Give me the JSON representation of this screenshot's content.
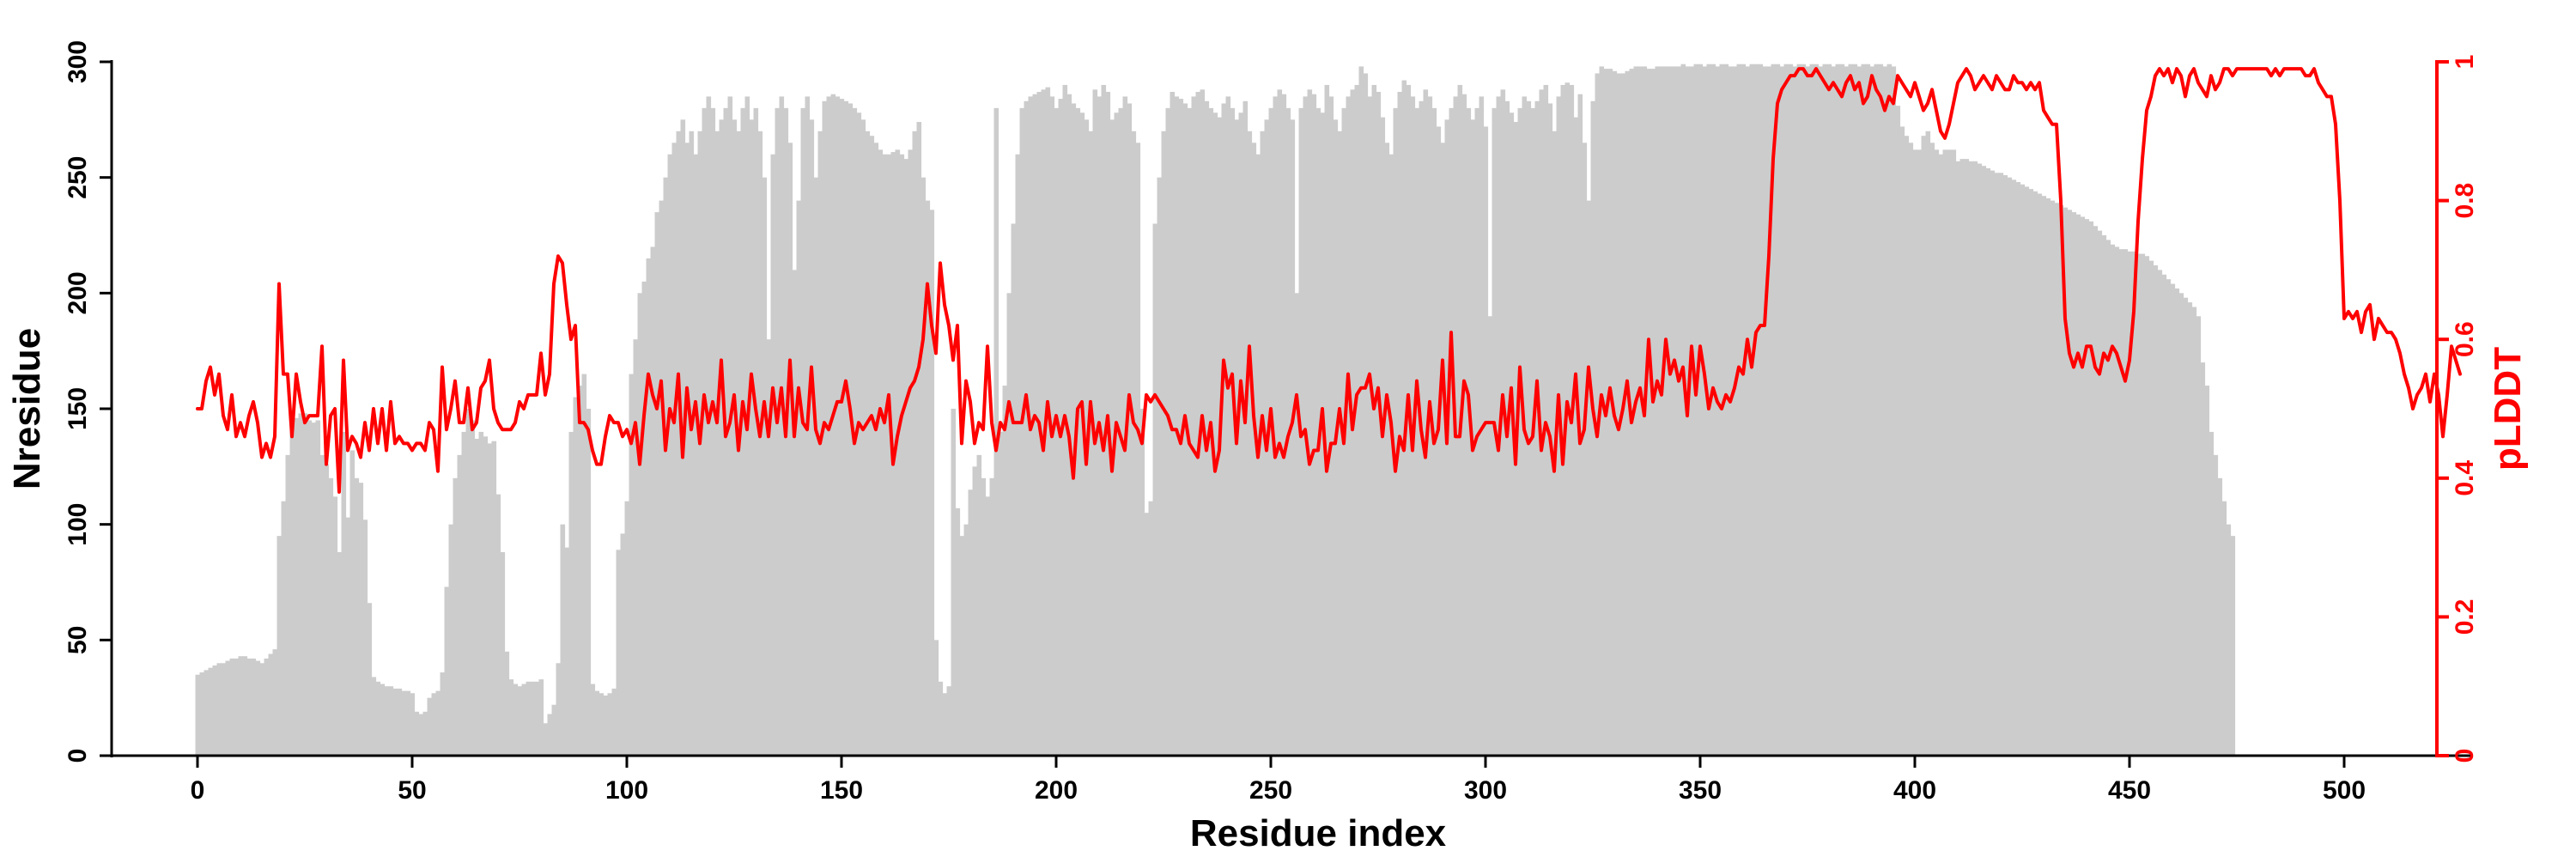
{
  "colors": {
    "bars": "#cccccc",
    "line": "#ff0000",
    "axis_left": "#000000",
    "axis_right": "#ff0000",
    "background": "#ffffff"
  },
  "chart_data": {
    "type": "bar+line",
    "title": "",
    "xlabel": "Residue index",
    "ylabel_left": "Nresidue",
    "ylabel_right": "pLDDT",
    "xlim": [
      -20,
      522
    ],
    "ylim_left": [
      0,
      300
    ],
    "ylim_right": [
      0,
      1
    ],
    "x_ticks": [
      0,
      50,
      100,
      150,
      200,
      250,
      300,
      350,
      400,
      450,
      500
    ],
    "y_left_ticks": [
      0,
      50,
      100,
      150,
      200,
      250,
      300
    ],
    "y_right_ticks": [
      0,
      0.2,
      0.4,
      0.6,
      0.8,
      1
    ],
    "y_right_tick_labels": [
      "0",
      "0.2",
      "0.4",
      "0.6",
      "0.8",
      "1"
    ],
    "grid": false,
    "bars": {
      "name": "Nresidue",
      "start": 0,
      "step": 1,
      "values": [
        35,
        36,
        37,
        38,
        39,
        40,
        40,
        41,
        42,
        42,
        43,
        43,
        42,
        42,
        41,
        40,
        42,
        44,
        46,
        95,
        110,
        130,
        140,
        146,
        148,
        148,
        145,
        144,
        145,
        130,
        126,
        120,
        112,
        88,
        140,
        103,
        132,
        120,
        118,
        102,
        66,
        34,
        32,
        31,
        30,
        30,
        29,
        29,
        28,
        28,
        27,
        19,
        18,
        19,
        25,
        27,
        28,
        36,
        73,
        100,
        120,
        130,
        140,
        150,
        145,
        137,
        140,
        138,
        135,
        136,
        113,
        88,
        45,
        33,
        31,
        30,
        31,
        32,
        32,
        32,
        33,
        14,
        18,
        22,
        40,
        100,
        90,
        140,
        155,
        160,
        165,
        150,
        31,
        28,
        27,
        26,
        27,
        29,
        89,
        96,
        110,
        165,
        180,
        200,
        205,
        215,
        220,
        235,
        240,
        250,
        260,
        265,
        270,
        275,
        265,
        270,
        260,
        270,
        280,
        285,
        280,
        270,
        275,
        280,
        285,
        275,
        270,
        280,
        285,
        275,
        280,
        270,
        250,
        180,
        260,
        280,
        285,
        280,
        265,
        210,
        240,
        280,
        285,
        275,
        250,
        270,
        283,
        285,
        286,
        285,
        284,
        283,
        282,
        280,
        278,
        275,
        270,
        268,
        265,
        262,
        260,
        260,
        261,
        262,
        260,
        258,
        262,
        270,
        274,
        250,
        240,
        236,
        50,
        32,
        27,
        30,
        150,
        107,
        95,
        100,
        115,
        125,
        130,
        120,
        112,
        120,
        280,
        140,
        160,
        200,
        230,
        260,
        280,
        283,
        285,
        286,
        287,
        288,
        289,
        285,
        280,
        284,
        290,
        286,
        282,
        280,
        278,
        275,
        270,
        288,
        285,
        290,
        287,
        275,
        278,
        280,
        285,
        282,
        270,
        265,
        150,
        105,
        110,
        230,
        250,
        270,
        280,
        287,
        285,
        284,
        282,
        280,
        285,
        287,
        288,
        283,
        280,
        278,
        276,
        282,
        285,
        280,
        275,
        278,
        283,
        270,
        265,
        260,
        270,
        275,
        280,
        285,
        288,
        286,
        280,
        275,
        200,
        280,
        285,
        288,
        286,
        280,
        278,
        290,
        285,
        275,
        270,
        280,
        285,
        288,
        290,
        298,
        295,
        285,
        290,
        287,
        276,
        265,
        260,
        280,
        287,
        292,
        290,
        285,
        280,
        283,
        288,
        285,
        280,
        272,
        265,
        275,
        280,
        285,
        290,
        286,
        280,
        275,
        280,
        285,
        272,
        190,
        280,
        285,
        288,
        283,
        278,
        274,
        280,
        285,
        283,
        280,
        283,
        288,
        290,
        282,
        270,
        285,
        290,
        291,
        290,
        276,
        286,
        265,
        240,
        283,
        295,
        298,
        297,
        297,
        296,
        295,
        295,
        296,
        297,
        298,
        298,
        298,
        297,
        297,
        298,
        298,
        298,
        298,
        298,
        298,
        299,
        298,
        298,
        299,
        299,
        298,
        299,
        299,
        298,
        299,
        299,
        298,
        298,
        299,
        299,
        298,
        299,
        299,
        299,
        298,
        298,
        299,
        299,
        298,
        299,
        299,
        298,
        299,
        299,
        298,
        299,
        299,
        298,
        299,
        299,
        298,
        299,
        299,
        298,
        299,
        299,
        298,
        299,
        299,
        298,
        299,
        299,
        298,
        299,
        298,
        281,
        272,
        268,
        265,
        262,
        262,
        268,
        270,
        265,
        262,
        260,
        262,
        262,
        262,
        257,
        258,
        258,
        257,
        257,
        256,
        255,
        254,
        253,
        252,
        252,
        251,
        250,
        249,
        248,
        247,
        246,
        245,
        244,
        243,
        242,
        241,
        240,
        239,
        238,
        237,
        236,
        235,
        234,
        233,
        232,
        231,
        229,
        227,
        225,
        223,
        221,
        220,
        219,
        219,
        218,
        218,
        217,
        217,
        216,
        214,
        212,
        210,
        208,
        206,
        204,
        202,
        200,
        198,
        196,
        194,
        190,
        170,
        160,
        140,
        130,
        120,
        110,
        100,
        95
      ]
    },
    "series": [
      {
        "name": "pLDDT",
        "start": 0,
        "step": 1,
        "values": [
          0.5,
          0.5,
          0.54,
          0.56,
          0.52,
          0.55,
          0.49,
          0.47,
          0.52,
          0.46,
          0.48,
          0.46,
          0.49,
          0.51,
          0.48,
          0.43,
          0.45,
          0.43,
          0.46,
          0.68,
          0.55,
          0.55,
          0.46,
          0.55,
          0.51,
          0.48,
          0.49,
          0.49,
          0.49,
          0.59,
          0.42,
          0.49,
          0.5,
          0.38,
          0.57,
          0.44,
          0.46,
          0.45,
          0.43,
          0.48,
          0.44,
          0.5,
          0.45,
          0.5,
          0.44,
          0.51,
          0.45,
          0.46,
          0.45,
          0.45,
          0.44,
          0.45,
          0.45,
          0.44,
          0.48,
          0.47,
          0.41,
          0.56,
          0.47,
          0.5,
          0.54,
          0.48,
          0.48,
          0.53,
          0.47,
          0.48,
          0.53,
          0.54,
          0.57,
          0.5,
          0.48,
          0.47,
          0.47,
          0.47,
          0.48,
          0.51,
          0.5,
          0.52,
          0.52,
          0.52,
          0.58,
          0.52,
          0.55,
          0.68,
          0.72,
          0.71,
          0.65,
          0.6,
          0.62,
          0.48,
          0.48,
          0.47,
          0.44,
          0.42,
          0.42,
          0.46,
          0.49,
          0.48,
          0.48,
          0.46,
          0.47,
          0.45,
          0.48,
          0.42,
          0.49,
          0.55,
          0.52,
          0.5,
          0.54,
          0.44,
          0.5,
          0.48,
          0.55,
          0.43,
          0.53,
          0.47,
          0.51,
          0.45,
          0.52,
          0.48,
          0.51,
          0.48,
          0.57,
          0.46,
          0.48,
          0.52,
          0.44,
          0.51,
          0.47,
          0.55,
          0.5,
          0.46,
          0.51,
          0.46,
          0.53,
          0.48,
          0.53,
          0.46,
          0.57,
          0.46,
          0.53,
          0.48,
          0.47,
          0.56,
          0.47,
          0.45,
          0.48,
          0.47,
          0.49,
          0.51,
          0.51,
          0.54,
          0.5,
          0.45,
          0.48,
          0.47,
          0.48,
          0.49,
          0.47,
          0.5,
          0.48,
          0.52,
          0.42,
          0.46,
          0.49,
          0.51,
          0.53,
          0.54,
          0.56,
          0.6,
          0.68,
          0.62,
          0.58,
          0.71,
          0.65,
          0.62,
          0.57,
          0.62,
          0.45,
          0.54,
          0.51,
          0.45,
          0.48,
          0.47,
          0.59,
          0.48,
          0.44,
          0.48,
          0.47,
          0.51,
          0.48,
          0.48,
          0.48,
          0.52,
          0.47,
          0.49,
          0.48,
          0.44,
          0.51,
          0.46,
          0.49,
          0.46,
          0.49,
          0.46,
          0.4,
          0.5,
          0.51,
          0.42,
          0.51,
          0.45,
          0.48,
          0.44,
          0.49,
          0.41,
          0.48,
          0.46,
          0.44,
          0.52,
          0.48,
          0.47,
          0.45,
          0.52,
          0.51,
          0.52,
          0.51,
          0.5,
          0.49,
          0.47,
          0.47,
          0.45,
          0.49,
          0.45,
          0.44,
          0.43,
          0.49,
          0.44,
          0.48,
          0.41,
          0.44,
          0.57,
          0.53,
          0.55,
          0.45,
          0.54,
          0.48,
          0.59,
          0.49,
          0.43,
          0.49,
          0.44,
          0.5,
          0.43,
          0.45,
          0.43,
          0.46,
          0.48,
          0.52,
          0.46,
          0.47,
          0.42,
          0.44,
          0.44,
          0.5,
          0.41,
          0.45,
          0.45,
          0.5,
          0.45,
          0.55,
          0.47,
          0.52,
          0.53,
          0.53,
          0.55,
          0.5,
          0.53,
          0.46,
          0.52,
          0.48,
          0.41,
          0.46,
          0.44,
          0.52,
          0.44,
          0.54,
          0.47,
          0.43,
          0.51,
          0.45,
          0.47,
          0.57,
          0.45,
          0.61,
          0.46,
          0.46,
          0.54,
          0.52,
          0.44,
          0.46,
          0.47,
          0.48,
          0.48,
          0.48,
          0.44,
          0.52,
          0.46,
          0.53,
          0.42,
          0.56,
          0.47,
          0.45,
          0.46,
          0.54,
          0.44,
          0.48,
          0.46,
          0.41,
          0.52,
          0.42,
          0.51,
          0.48,
          0.55,
          0.45,
          0.47,
          0.56,
          0.5,
          0.46,
          0.52,
          0.49,
          0.53,
          0.49,
          0.47,
          0.5,
          0.54,
          0.48,
          0.51,
          0.53,
          0.49,
          0.6,
          0.51,
          0.54,
          0.52,
          0.6,
          0.55,
          0.57,
          0.54,
          0.56,
          0.49,
          0.59,
          0.52,
          0.59,
          0.55,
          0.5,
          0.53,
          0.51,
          0.5,
          0.52,
          0.51,
          0.53,
          0.56,
          0.55,
          0.6,
          0.56,
          0.61,
          0.62,
          0.62,
          0.72,
          0.86,
          0.94,
          0.96,
          0.97,
          0.98,
          0.98,
          0.99,
          0.99,
          0.98,
          0.98,
          0.99,
          0.98,
          0.97,
          0.96,
          0.97,
          0.96,
          0.95,
          0.97,
          0.98,
          0.96,
          0.97,
          0.94,
          0.95,
          0.98,
          0.96,
          0.95,
          0.93,
          0.95,
          0.94,
          0.98,
          0.97,
          0.96,
          0.95,
          0.97,
          0.95,
          0.93,
          0.94,
          0.96,
          0.93,
          0.9,
          0.89,
          0.91,
          0.94,
          0.97,
          0.98,
          0.99,
          0.98,
          0.96,
          0.97,
          0.98,
          0.97,
          0.96,
          0.98,
          0.97,
          0.96,
          0.96,
          0.98,
          0.97,
          0.97,
          0.96,
          0.97,
          0.96,
          0.97,
          0.93,
          0.92,
          0.91,
          0.91,
          0.8,
          0.63,
          0.58,
          0.56,
          0.58,
          0.56,
          0.59,
          0.59,
          0.56,
          0.55,
          0.58,
          0.57,
          0.59,
          0.58,
          0.56,
          0.54,
          0.57,
          0.64,
          0.77,
          0.86,
          0.93,
          0.95,
          0.98,
          0.99,
          0.98,
          0.99,
          0.97,
          0.99,
          0.98,
          0.95,
          0.98,
          0.99,
          0.97,
          0.96,
          0.95,
          0.98,
          0.96,
          0.97,
          0.99,
          0.99,
          0.98,
          0.99,
          0.99,
          0.99,
          0.99,
          0.99,
          0.99,
          0.99,
          0.99,
          0.98,
          0.99,
          0.98,
          0.99,
          0.99,
          0.99,
          0.99,
          0.99,
          0.98,
          0.98,
          0.99,
          0.97,
          0.96,
          0.95,
          0.95,
          0.91,
          0.8,
          0.63,
          0.64,
          0.63,
          0.64,
          0.61,
          0.64,
          0.65,
          0.6,
          0.63,
          0.62,
          0.61,
          0.61,
          0.6,
          0.58,
          0.55,
          0.53,
          0.5,
          0.52,
          0.53,
          0.55,
          0.51,
          0.55,
          0.52,
          0.46,
          0.52,
          0.59,
          0.57,
          0.55
        ]
      }
    ]
  }
}
